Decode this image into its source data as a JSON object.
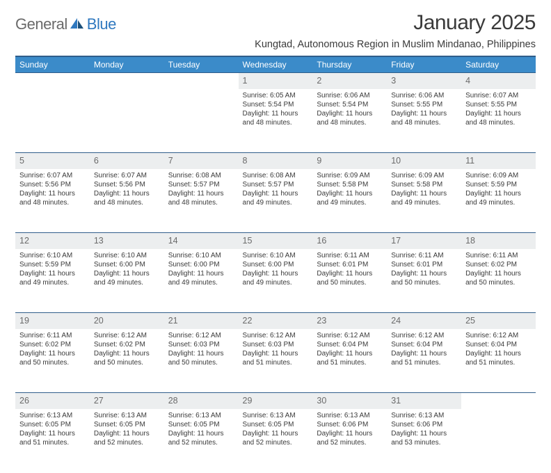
{
  "header": {
    "logo_general": "General",
    "logo_blue": "Blue",
    "month_title": "January 2025",
    "location": "Kungtad, Autonomous Region in Muslim Mindanao, Philippines"
  },
  "colors": {
    "header_bg": "#3b8bc9",
    "header_border": "#2f5d8a",
    "daynum_bg": "#eceeef",
    "daynum_text": "#6a6a6a",
    "body_text": "#3a3a3a",
    "logo_gray": "#6a6a6a",
    "logo_blue": "#2f78bf",
    "page_bg": "#ffffff"
  },
  "typography": {
    "month_title_size": 30,
    "location_size": 14.5,
    "weekday_size": 12,
    "daynum_size": 12.5,
    "cell_size": 10
  },
  "weekdays": [
    "Sunday",
    "Monday",
    "Tuesday",
    "Wednesday",
    "Thursday",
    "Friday",
    "Saturday"
  ],
  "weeks": [
    {
      "nums": [
        "",
        "",
        "",
        "1",
        "2",
        "3",
        "4"
      ],
      "cells": [
        null,
        null,
        null,
        {
          "sunrise": "Sunrise: 6:05 AM",
          "sunset": "Sunset: 5:54 PM",
          "d1": "Daylight: 11 hours",
          "d2": "and 48 minutes."
        },
        {
          "sunrise": "Sunrise: 6:06 AM",
          "sunset": "Sunset: 5:54 PM",
          "d1": "Daylight: 11 hours",
          "d2": "and 48 minutes."
        },
        {
          "sunrise": "Sunrise: 6:06 AM",
          "sunset": "Sunset: 5:55 PM",
          "d1": "Daylight: 11 hours",
          "d2": "and 48 minutes."
        },
        {
          "sunrise": "Sunrise: 6:07 AM",
          "sunset": "Sunset: 5:55 PM",
          "d1": "Daylight: 11 hours",
          "d2": "and 48 minutes."
        }
      ]
    },
    {
      "nums": [
        "5",
        "6",
        "7",
        "8",
        "9",
        "10",
        "11"
      ],
      "cells": [
        {
          "sunrise": "Sunrise: 6:07 AM",
          "sunset": "Sunset: 5:56 PM",
          "d1": "Daylight: 11 hours",
          "d2": "and 48 minutes."
        },
        {
          "sunrise": "Sunrise: 6:07 AM",
          "sunset": "Sunset: 5:56 PM",
          "d1": "Daylight: 11 hours",
          "d2": "and 48 minutes."
        },
        {
          "sunrise": "Sunrise: 6:08 AM",
          "sunset": "Sunset: 5:57 PM",
          "d1": "Daylight: 11 hours",
          "d2": "and 48 minutes."
        },
        {
          "sunrise": "Sunrise: 6:08 AM",
          "sunset": "Sunset: 5:57 PM",
          "d1": "Daylight: 11 hours",
          "d2": "and 49 minutes."
        },
        {
          "sunrise": "Sunrise: 6:09 AM",
          "sunset": "Sunset: 5:58 PM",
          "d1": "Daylight: 11 hours",
          "d2": "and 49 minutes."
        },
        {
          "sunrise": "Sunrise: 6:09 AM",
          "sunset": "Sunset: 5:58 PM",
          "d1": "Daylight: 11 hours",
          "d2": "and 49 minutes."
        },
        {
          "sunrise": "Sunrise: 6:09 AM",
          "sunset": "Sunset: 5:59 PM",
          "d1": "Daylight: 11 hours",
          "d2": "and 49 minutes."
        }
      ]
    },
    {
      "nums": [
        "12",
        "13",
        "14",
        "15",
        "16",
        "17",
        "18"
      ],
      "cells": [
        {
          "sunrise": "Sunrise: 6:10 AM",
          "sunset": "Sunset: 5:59 PM",
          "d1": "Daylight: 11 hours",
          "d2": "and 49 minutes."
        },
        {
          "sunrise": "Sunrise: 6:10 AM",
          "sunset": "Sunset: 6:00 PM",
          "d1": "Daylight: 11 hours",
          "d2": "and 49 minutes."
        },
        {
          "sunrise": "Sunrise: 6:10 AM",
          "sunset": "Sunset: 6:00 PM",
          "d1": "Daylight: 11 hours",
          "d2": "and 49 minutes."
        },
        {
          "sunrise": "Sunrise: 6:10 AM",
          "sunset": "Sunset: 6:00 PM",
          "d1": "Daylight: 11 hours",
          "d2": "and 49 minutes."
        },
        {
          "sunrise": "Sunrise: 6:11 AM",
          "sunset": "Sunset: 6:01 PM",
          "d1": "Daylight: 11 hours",
          "d2": "and 50 minutes."
        },
        {
          "sunrise": "Sunrise: 6:11 AM",
          "sunset": "Sunset: 6:01 PM",
          "d1": "Daylight: 11 hours",
          "d2": "and 50 minutes."
        },
        {
          "sunrise": "Sunrise: 6:11 AM",
          "sunset": "Sunset: 6:02 PM",
          "d1": "Daylight: 11 hours",
          "d2": "and 50 minutes."
        }
      ]
    },
    {
      "nums": [
        "19",
        "20",
        "21",
        "22",
        "23",
        "24",
        "25"
      ],
      "cells": [
        {
          "sunrise": "Sunrise: 6:11 AM",
          "sunset": "Sunset: 6:02 PM",
          "d1": "Daylight: 11 hours",
          "d2": "and 50 minutes."
        },
        {
          "sunrise": "Sunrise: 6:12 AM",
          "sunset": "Sunset: 6:02 PM",
          "d1": "Daylight: 11 hours",
          "d2": "and 50 minutes."
        },
        {
          "sunrise": "Sunrise: 6:12 AM",
          "sunset": "Sunset: 6:03 PM",
          "d1": "Daylight: 11 hours",
          "d2": "and 50 minutes."
        },
        {
          "sunrise": "Sunrise: 6:12 AM",
          "sunset": "Sunset: 6:03 PM",
          "d1": "Daylight: 11 hours",
          "d2": "and 51 minutes."
        },
        {
          "sunrise": "Sunrise: 6:12 AM",
          "sunset": "Sunset: 6:04 PM",
          "d1": "Daylight: 11 hours",
          "d2": "and 51 minutes."
        },
        {
          "sunrise": "Sunrise: 6:12 AM",
          "sunset": "Sunset: 6:04 PM",
          "d1": "Daylight: 11 hours",
          "d2": "and 51 minutes."
        },
        {
          "sunrise": "Sunrise: 6:12 AM",
          "sunset": "Sunset: 6:04 PM",
          "d1": "Daylight: 11 hours",
          "d2": "and 51 minutes."
        }
      ]
    },
    {
      "nums": [
        "26",
        "27",
        "28",
        "29",
        "30",
        "31",
        ""
      ],
      "cells": [
        {
          "sunrise": "Sunrise: 6:13 AM",
          "sunset": "Sunset: 6:05 PM",
          "d1": "Daylight: 11 hours",
          "d2": "and 51 minutes."
        },
        {
          "sunrise": "Sunrise: 6:13 AM",
          "sunset": "Sunset: 6:05 PM",
          "d1": "Daylight: 11 hours",
          "d2": "and 52 minutes."
        },
        {
          "sunrise": "Sunrise: 6:13 AM",
          "sunset": "Sunset: 6:05 PM",
          "d1": "Daylight: 11 hours",
          "d2": "and 52 minutes."
        },
        {
          "sunrise": "Sunrise: 6:13 AM",
          "sunset": "Sunset: 6:05 PM",
          "d1": "Daylight: 11 hours",
          "d2": "and 52 minutes."
        },
        {
          "sunrise": "Sunrise: 6:13 AM",
          "sunset": "Sunset: 6:06 PM",
          "d1": "Daylight: 11 hours",
          "d2": "and 52 minutes."
        },
        {
          "sunrise": "Sunrise: 6:13 AM",
          "sunset": "Sunset: 6:06 PM",
          "d1": "Daylight: 11 hours",
          "d2": "and 53 minutes."
        },
        null
      ]
    }
  ]
}
